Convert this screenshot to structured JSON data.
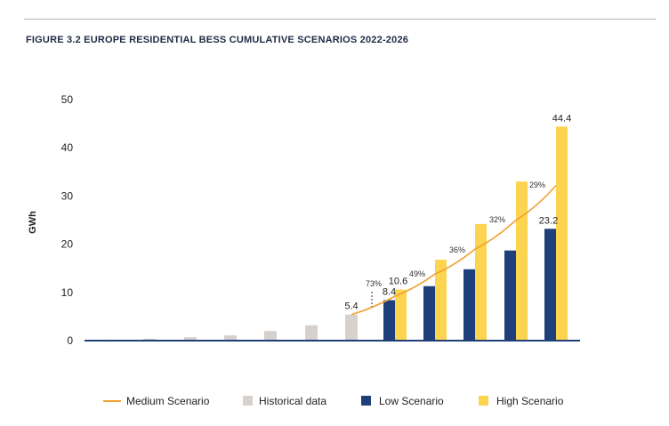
{
  "chart_data": {
    "type": "bar",
    "title": "FIGURE 3.2 EUROPE RESIDENTIAL BESS CUMULATIVE SCENARIOS 2022-2026",
    "ylabel": "GWh",
    "xlabel": "",
    "ylim": [
      0,
      50
    ],
    "yticks": [
      0,
      10,
      20,
      30,
      40,
      50
    ],
    "grid": false,
    "legend_position": "bottom",
    "historical": {
      "name": "Historical data",
      "values": [
        0.2,
        0.4,
        0.7,
        1.1,
        2.0,
        3.2,
        5.4
      ],
      "labels": [
        "",
        "",
        "",
        "",
        "",
        "",
        "5.4"
      ],
      "color": "#d6d1cc"
    },
    "scenario_groups": 5,
    "series": [
      {
        "name": "Low Scenario",
        "values": [
          8.4,
          11.3,
          14.8,
          18.7,
          23.2
        ],
        "labels": [
          "8.4",
          "",
          "",
          "",
          "23.2"
        ],
        "color": "#1f3f7a"
      },
      {
        "name": "High Scenario",
        "values": [
          10.6,
          16.8,
          24.2,
          33.0,
          44.4
        ],
        "labels": [
          "10.6",
          "",
          "",
          "",
          "44.4"
        ],
        "color": "#fcd450"
      }
    ],
    "medium_scenario": {
      "name": "Medium Scenario",
      "values": [
        5.4,
        9.2,
        13.8,
        19.0,
        25.0,
        32.2
      ],
      "color": "#f0a030"
    },
    "growth_labels": [
      "73%",
      "49%",
      "36%",
      "32%",
      "29%"
    ]
  }
}
